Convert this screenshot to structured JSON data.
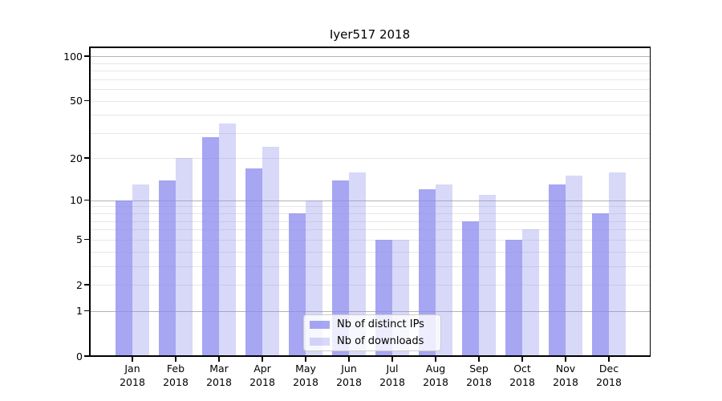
{
  "title": "Iyer517 2018",
  "chart_data": {
    "type": "bar",
    "title": "Iyer517 2018",
    "categories": [
      "Jan 2018",
      "Feb 2018",
      "Mar 2018",
      "Apr 2018",
      "May 2018",
      "Jun 2018",
      "Jul 2018",
      "Aug 2018",
      "Sep 2018",
      "Oct 2018",
      "Nov 2018",
      "Dec 2018"
    ],
    "series": [
      {
        "name": "Nb of distinct IPs",
        "color": "rgba(136,136,238,0.75)",
        "values": [
          10,
          14,
          28,
          17,
          8,
          14,
          5,
          12,
          7,
          5,
          13,
          8
        ]
      },
      {
        "name": "Nb of downloads",
        "color": "rgba(136,136,238,0.33)",
        "values": [
          13,
          20,
          35,
          24,
          10,
          16,
          5,
          13,
          11,
          6,
          15,
          16
        ]
      }
    ],
    "xlabel": "",
    "ylabel": "",
    "yscale": "log1p",
    "ylim": [
      0,
      118
    ],
    "yticks": [
      {
        "label": "100",
        "value": 100
      },
      {
        "label": "50",
        "value": 50
      },
      {
        "label": "20",
        "value": 20
      },
      {
        "label": "10",
        "value": 10
      },
      {
        "label": "5",
        "value": 5
      },
      {
        "label": "2",
        "value": 2
      },
      {
        "label": "1",
        "value": 1
      },
      {
        "label": "0",
        "value": 0
      }
    ],
    "major_gridlines": [
      1,
      10,
      100
    ],
    "minor_gridlines": [
      2,
      3,
      4,
      5,
      6,
      7,
      8,
      9,
      20,
      30,
      40,
      50,
      60,
      70,
      80,
      90
    ],
    "grid": true,
    "legend_position": "lower center"
  },
  "colors": {
    "bar_dark": "rgba(136,136,238,0.75)",
    "bar_light": "rgba(136,136,238,0.33)",
    "grid_major": "#b4b4b4",
    "grid_minor": "#e7e7e7",
    "spine": "#000000",
    "legend_border": "#cccccc",
    "background": "#ffffff"
  }
}
